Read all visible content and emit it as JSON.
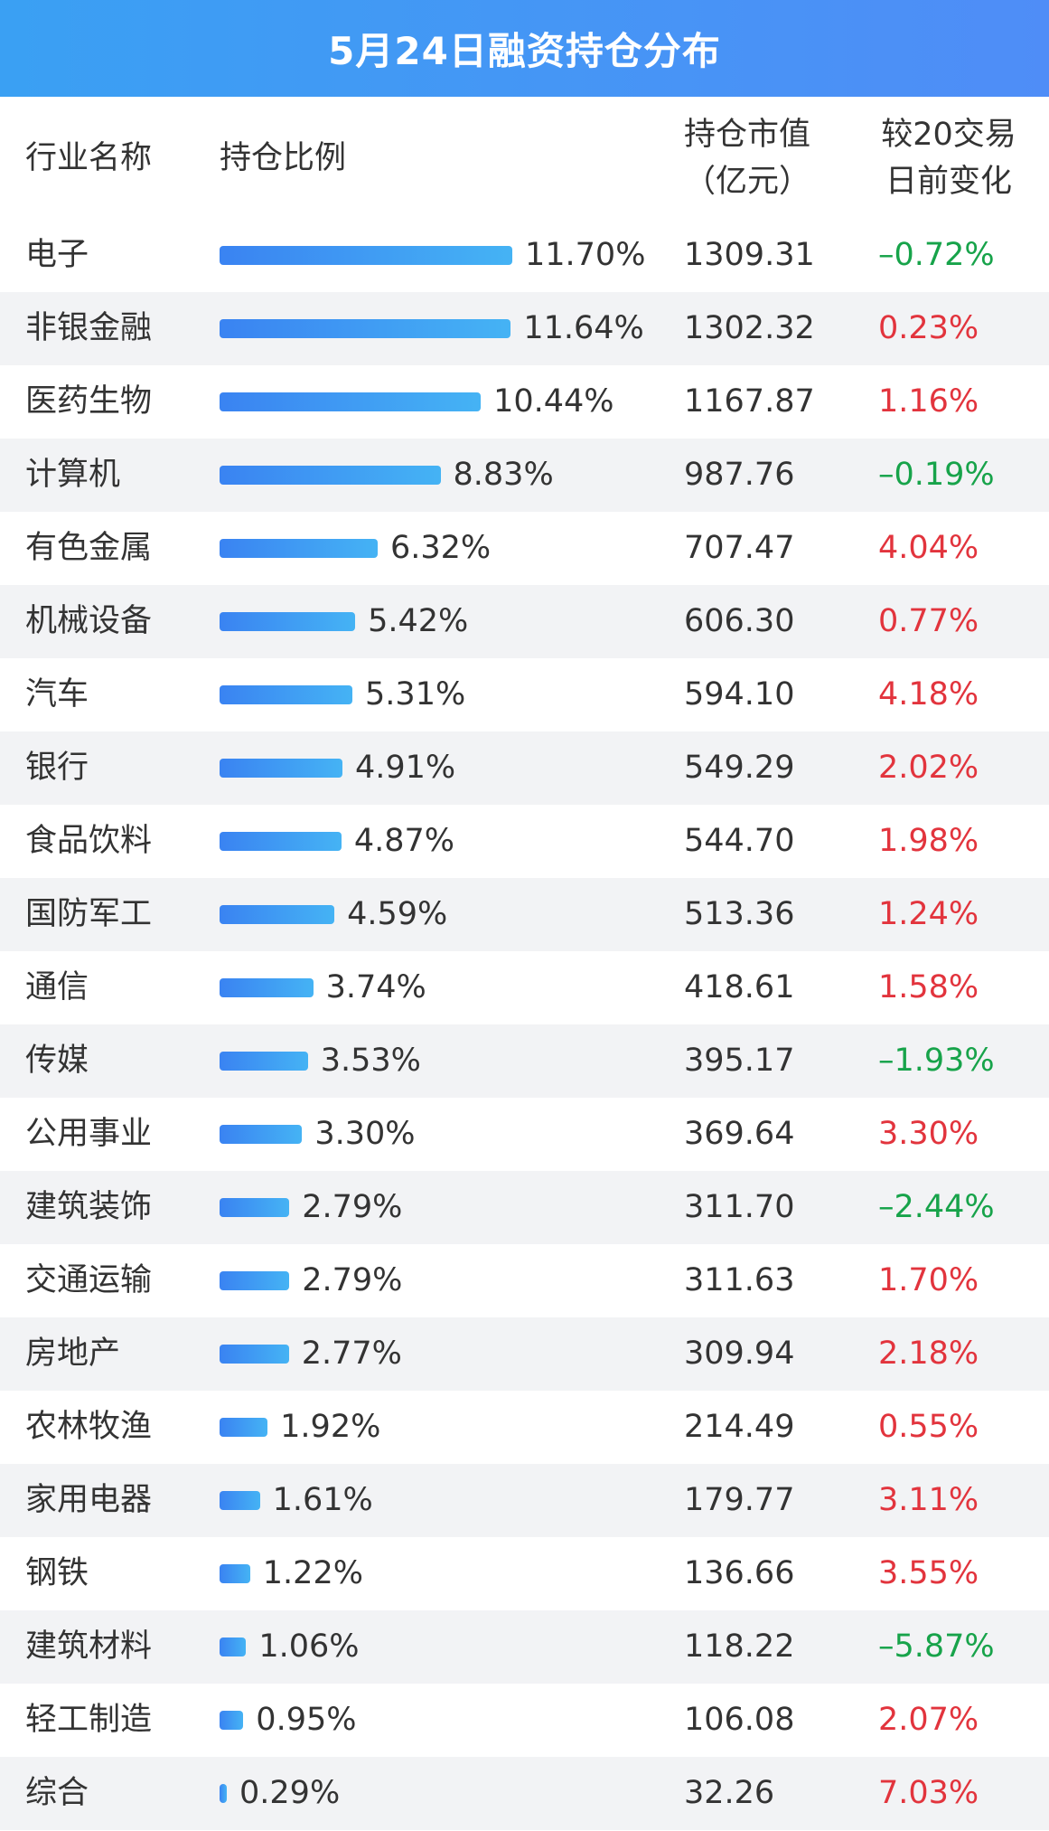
{
  "title": "5月24日融资持仓分布",
  "colors": {
    "up": "#e2343d",
    "down": "#17a34a",
    "bar": "#3a8ef3",
    "title_bg": "#4a93f6"
  },
  "header": {
    "name": "行业名称",
    "ratio": "持仓比例",
    "value_line1": "持仓市值",
    "value_line2": "（亿元）",
    "change_line1": "较20交易",
    "change_line2": "日前变化"
  },
  "chart_data": {
    "type": "bar",
    "orientation": "horizontal",
    "title": "5月24日融资持仓分布",
    "categories": [
      "电子",
      "非银金融",
      "医药生物",
      "计算机",
      "有色金属",
      "机械设备",
      "汽车",
      "银行",
      "食品饮料",
      "国防军工",
      "通信",
      "传媒",
      "公用事业",
      "建筑装饰",
      "交通运输",
      "房地产",
      "农林牧渔",
      "家用电器",
      "钢铁",
      "建筑材料",
      "轻工制造",
      "综合"
    ],
    "series": [
      {
        "name": "持仓比例",
        "values": [
          11.7,
          11.64,
          10.44,
          8.83,
          6.32,
          5.42,
          5.31,
          4.91,
          4.87,
          4.59,
          3.74,
          3.53,
          3.3,
          2.79,
          2.79,
          2.77,
          1.92,
          1.61,
          1.22,
          1.06,
          0.95,
          0.29
        ]
      }
    ],
    "xlim": [
      0,
      11.7
    ],
    "grid": false,
    "rows": [
      {
        "name": "电子",
        "ratio": 11.7,
        "ratio_label": "11.70%",
        "value": "1309.31",
        "change": "–0.72%",
        "dir": "down"
      },
      {
        "name": "非银金融",
        "ratio": 11.64,
        "ratio_label": "11.64%",
        "value": "1302.32",
        "change": "0.23%",
        "dir": "up"
      },
      {
        "name": "医药生物",
        "ratio": 10.44,
        "ratio_label": "10.44%",
        "value": "1167.87",
        "change": "1.16%",
        "dir": "up"
      },
      {
        "name": "计算机",
        "ratio": 8.83,
        "ratio_label": "8.83%",
        "value": "987.76",
        "change": "–0.19%",
        "dir": "down"
      },
      {
        "name": "有色金属",
        "ratio": 6.32,
        "ratio_label": "6.32%",
        "value": "707.47",
        "change": "4.04%",
        "dir": "up"
      },
      {
        "name": "机械设备",
        "ratio": 5.42,
        "ratio_label": "5.42%",
        "value": "606.30",
        "change": "0.77%",
        "dir": "up"
      },
      {
        "name": "汽车",
        "ratio": 5.31,
        "ratio_label": "5.31%",
        "value": "594.10",
        "change": "4.18%",
        "dir": "up"
      },
      {
        "name": "银行",
        "ratio": 4.91,
        "ratio_label": "4.91%",
        "value": "549.29",
        "change": "2.02%",
        "dir": "up"
      },
      {
        "name": "食品饮料",
        "ratio": 4.87,
        "ratio_label": "4.87%",
        "value": "544.70",
        "change": "1.98%",
        "dir": "up"
      },
      {
        "name": "国防军工",
        "ratio": 4.59,
        "ratio_label": "4.59%",
        "value": "513.36",
        "change": "1.24%",
        "dir": "up"
      },
      {
        "name": "通信",
        "ratio": 3.74,
        "ratio_label": "3.74%",
        "value": "418.61",
        "change": "1.58%",
        "dir": "up"
      },
      {
        "name": "传媒",
        "ratio": 3.53,
        "ratio_label": "3.53%",
        "value": "395.17",
        "change": "–1.93%",
        "dir": "down"
      },
      {
        "name": "公用事业",
        "ratio": 3.3,
        "ratio_label": "3.30%",
        "value": "369.64",
        "change": "3.30%",
        "dir": "up"
      },
      {
        "name": "建筑装饰",
        "ratio": 2.79,
        "ratio_label": "2.79%",
        "value": "311.70",
        "change": "–2.44%",
        "dir": "down"
      },
      {
        "name": "交通运输",
        "ratio": 2.79,
        "ratio_label": "2.79%",
        "value": "311.63",
        "change": "1.70%",
        "dir": "up"
      },
      {
        "name": "房地产",
        "ratio": 2.77,
        "ratio_label": "2.77%",
        "value": "309.94",
        "change": "2.18%",
        "dir": "up"
      },
      {
        "name": "农林牧渔",
        "ratio": 1.92,
        "ratio_label": "1.92%",
        "value": "214.49",
        "change": "0.55%",
        "dir": "up"
      },
      {
        "name": "家用电器",
        "ratio": 1.61,
        "ratio_label": "1.61%",
        "value": "179.77",
        "change": "3.11%",
        "dir": "up"
      },
      {
        "name": "钢铁",
        "ratio": 1.22,
        "ratio_label": "1.22%",
        "value": "136.66",
        "change": "3.55%",
        "dir": "up"
      },
      {
        "name": "建筑材料",
        "ratio": 1.06,
        "ratio_label": "1.06%",
        "value": "118.22",
        "change": "–5.87%",
        "dir": "down"
      },
      {
        "name": "轻工制造",
        "ratio": 0.95,
        "ratio_label": "0.95%",
        "value": "106.08",
        "change": "2.07%",
        "dir": "up"
      },
      {
        "name": "综合",
        "ratio": 0.29,
        "ratio_label": "0.29%",
        "value": "32.26",
        "change": "7.03%",
        "dir": "up"
      }
    ]
  }
}
